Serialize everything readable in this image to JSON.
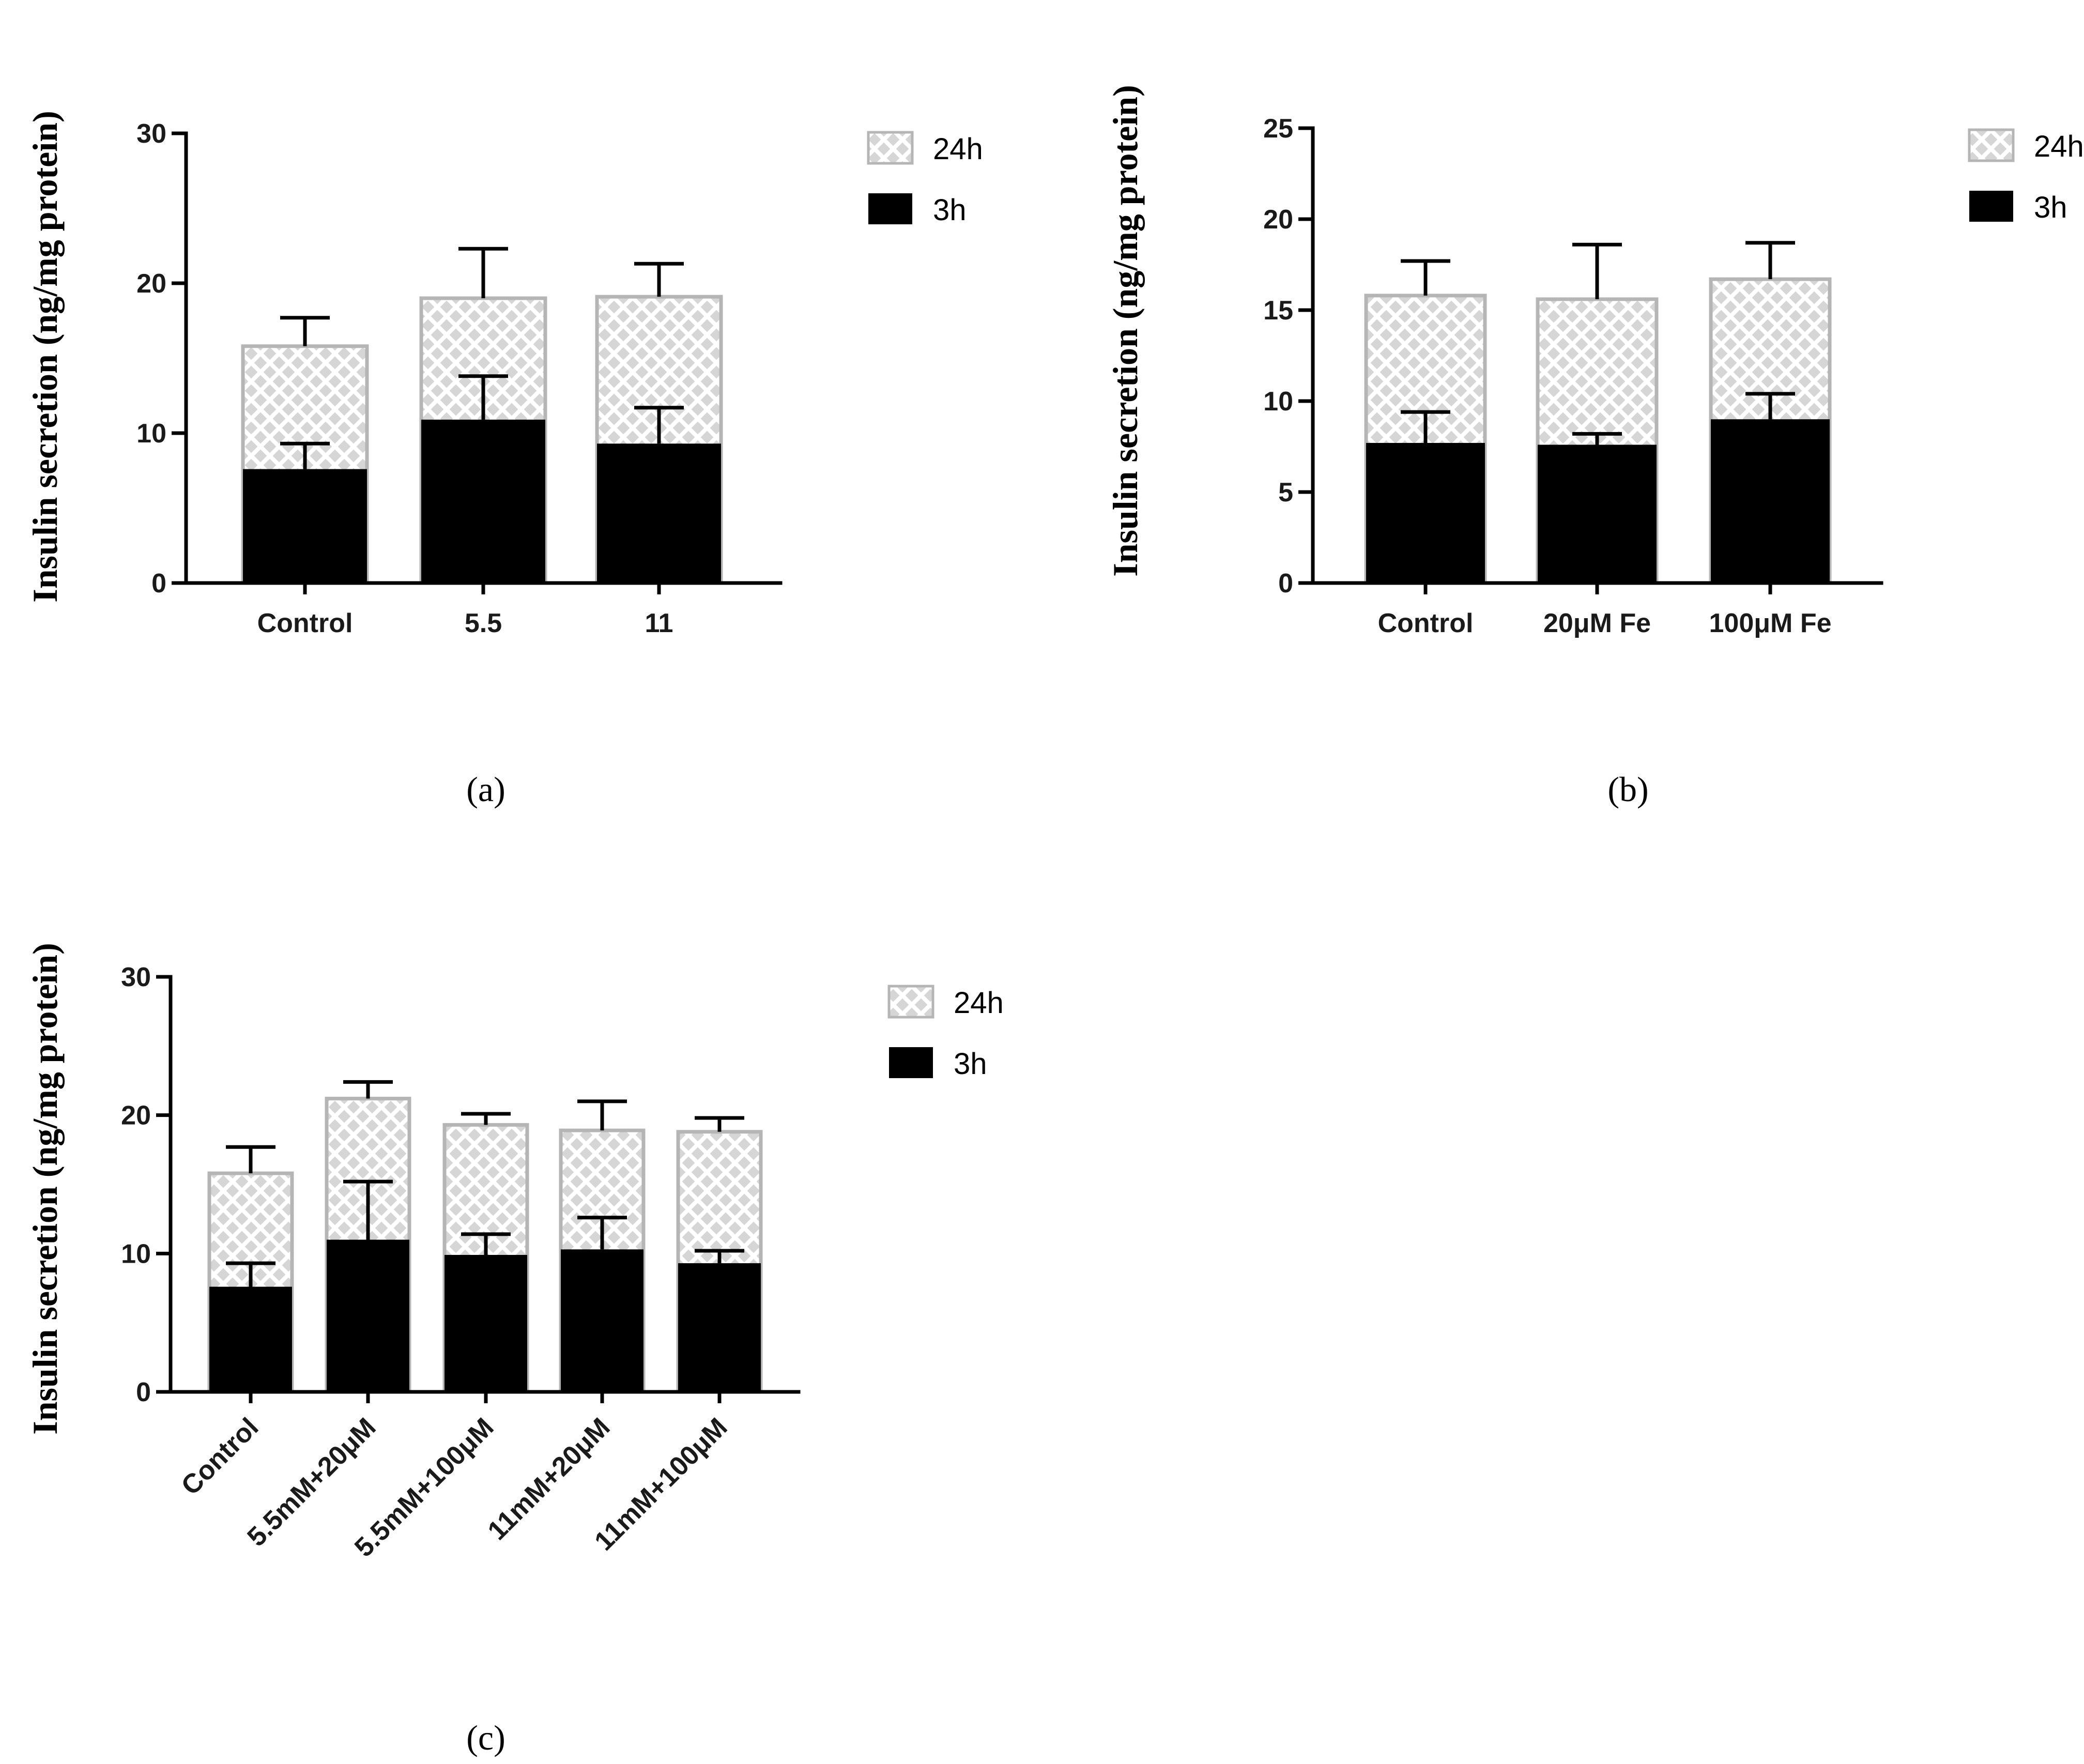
{
  "colors": {
    "bar_3h": "#000000",
    "bar_24h_fill": "#d6d6d6",
    "bar_24h_pattern": "#ffffff",
    "bar_24h_border": "#b5b5b5"
  },
  "chart_data": [
    {
      "id": "a",
      "type": "bar",
      "stacked": true,
      "panel_label": "(a)",
      "ylabel": "Insulin secretion (ng/mg protein)",
      "xlabel": "",
      "ylim": [
        0,
        30
      ],
      "yticks": [
        0,
        10,
        20,
        30
      ],
      "categories": [
        "Control",
        "5.5",
        "11"
      ],
      "series": [
        {
          "name": "3h",
          "values": [
            7.6,
            10.9,
            9.3
          ],
          "errors": [
            1.7,
            2.9,
            2.4
          ]
        },
        {
          "name": "24h",
          "values": [
            15.8,
            19.0,
            19.1
          ],
          "errors": [
            1.9,
            3.3,
            2.2
          ]
        }
      ],
      "legend": [
        "24h",
        "3h"
      ],
      "legend_position": "right"
    },
    {
      "id": "b",
      "type": "bar",
      "stacked": true,
      "panel_label": "(b)",
      "ylabel": "Insulin secretion (ng/mg protein)",
      "xlabel": "",
      "ylim": [
        0,
        25
      ],
      "yticks": [
        0,
        5,
        10,
        15,
        20,
        25
      ],
      "categories": [
        "Control",
        "20μM Fe",
        "100μM Fe"
      ],
      "series": [
        {
          "name": "3h",
          "values": [
            7.7,
            7.6,
            9.0
          ],
          "errors": [
            1.7,
            0.6,
            1.4
          ]
        },
        {
          "name": "24h",
          "values": [
            15.8,
            15.6,
            16.7
          ],
          "errors": [
            1.9,
            3.0,
            2.0
          ]
        }
      ],
      "legend": [
        "24h",
        "3h"
      ],
      "legend_position": "right"
    },
    {
      "id": "c",
      "type": "bar",
      "stacked": true,
      "panel_label": "(c)",
      "ylabel": "Insulin secretion (ng/mg protein)",
      "xlabel": "",
      "ylim": [
        0,
        30
      ],
      "yticks": [
        0,
        10,
        20,
        30
      ],
      "categories": [
        "Control",
        "5.5mM+20μM",
        "5.5mM+100μM",
        "11mM+20μM",
        "11mM+100μM"
      ],
      "series": [
        {
          "name": "3h",
          "values": [
            7.6,
            11.0,
            9.9,
            10.3,
            9.3
          ],
          "errors": [
            1.7,
            4.2,
            1.5,
            2.3,
            0.9
          ]
        },
        {
          "name": "24h",
          "values": [
            15.8,
            21.2,
            19.3,
            18.9,
            18.8
          ],
          "errors": [
            1.9,
            1.2,
            0.8,
            2.1,
            1.0
          ]
        }
      ],
      "legend": [
        "24h",
        "3h"
      ],
      "legend_position": "right"
    }
  ]
}
